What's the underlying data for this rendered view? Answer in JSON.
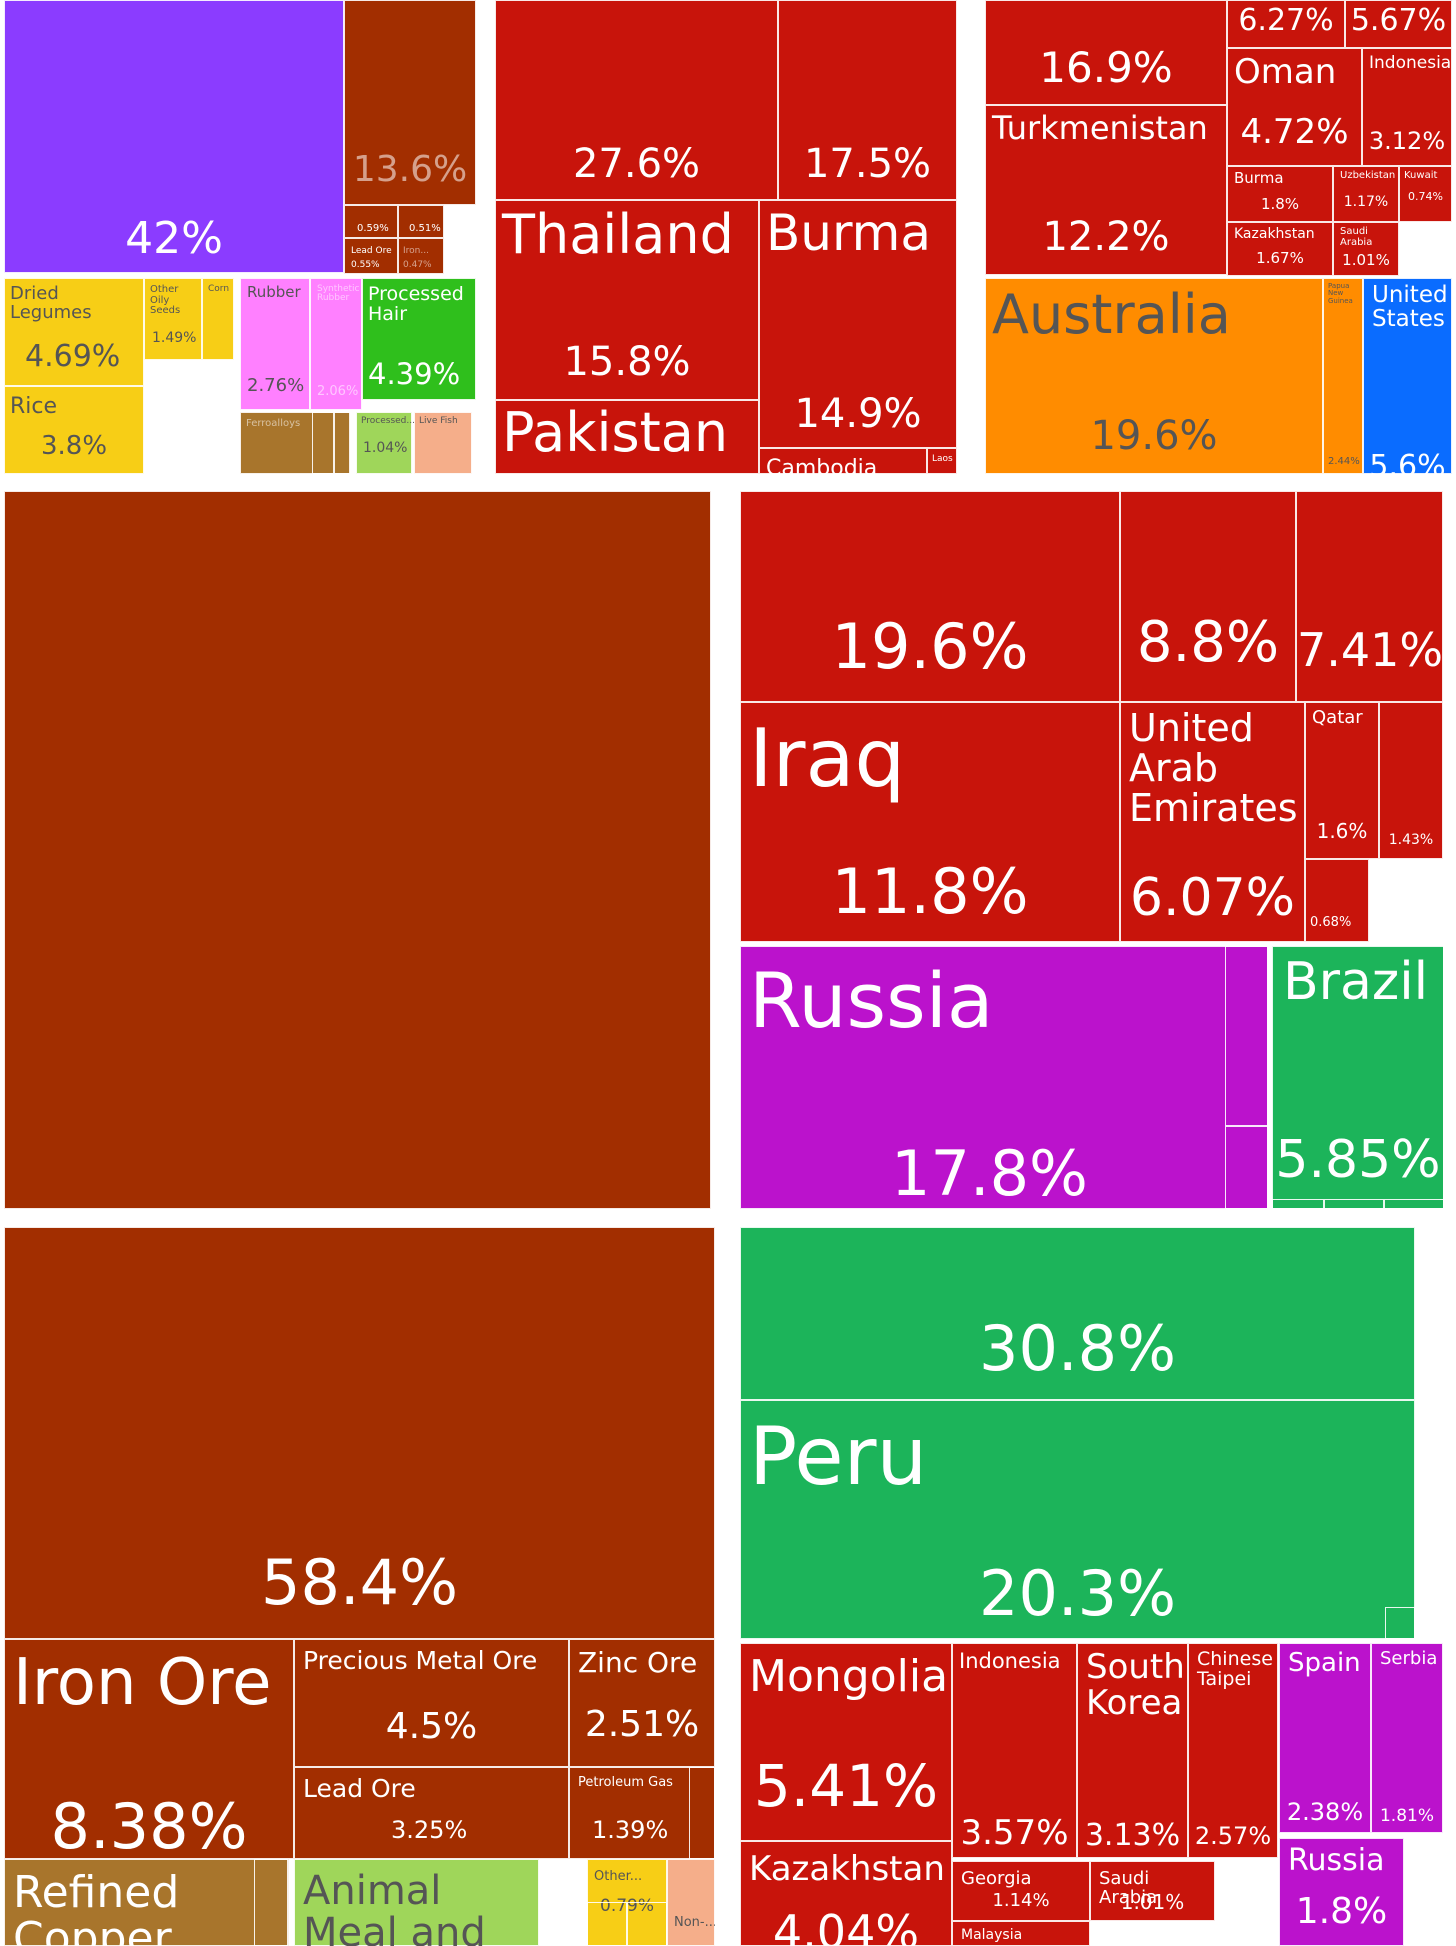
{
  "colors": {
    "purple": "#8b3cff",
    "rust": "#a22e00",
    "red": "#c8140b",
    "yellow": "#f7ce16",
    "pink": "#ff80ff",
    "green": "#2fbf1c",
    "brown": "#a8752c",
    "lime": "#9fd65a",
    "salmon": "#f5ae8a",
    "orange": "#ff8c00",
    "blue": "#0a6cff",
    "magenta": "#bb12cc",
    "teal": "#1cb45a"
  },
  "chart_data": [
    {
      "type": "treemap",
      "panel": "top-left",
      "tiles": [
        {
          "label": "",
          "value": "42%",
          "color": "purple"
        },
        {
          "label": "",
          "value": "13.6%",
          "color": "rust"
        },
        {
          "label": "",
          "value": "0.59%",
          "color": "rust"
        },
        {
          "label": "",
          "value": "0.51%",
          "color": "rust"
        },
        {
          "label": "Lead Ore",
          "value": "0.55%",
          "color": "rust"
        },
        {
          "label": "Iron...",
          "value": "0.47%",
          "color": "rust"
        },
        {
          "label": "Dried Legumes",
          "value": "4.69%",
          "color": "yellow"
        },
        {
          "label": "Rice",
          "value": "3.8%",
          "color": "yellow"
        },
        {
          "label": "Other Oily Seeds",
          "value": "1.49%",
          "color": "yellow"
        },
        {
          "label": "Corn",
          "value": "",
          "color": "yellow"
        },
        {
          "label": "Rubber",
          "value": "2.76%",
          "color": "pink"
        },
        {
          "label": "Synthetic Rubber",
          "value": "2.06%",
          "color": "pink"
        },
        {
          "label": "Processed Hair",
          "value": "4.39%",
          "color": "green"
        },
        {
          "label": "Ferroalloys",
          "value": "",
          "color": "brown"
        },
        {
          "label": "Processed...",
          "value": "1.04%",
          "color": "lime"
        },
        {
          "label": "Live Fish",
          "value": "",
          "color": "salmon"
        }
      ]
    },
    {
      "type": "treemap",
      "panel": "top-middle",
      "tiles": [
        {
          "label": "",
          "value": "27.6%",
          "color": "red"
        },
        {
          "label": "",
          "value": "17.5%",
          "color": "red"
        },
        {
          "label": "Thailand",
          "value": "15.8%",
          "color": "red"
        },
        {
          "label": "Burma",
          "value": "14.9%",
          "color": "red"
        },
        {
          "label": "Pakistan",
          "value": "",
          "color": "red"
        },
        {
          "label": "Cambodia",
          "value": "",
          "color": "red"
        },
        {
          "label": "Laos",
          "value": "",
          "color": "red"
        }
      ]
    },
    {
      "type": "treemap",
      "panel": "top-right",
      "tiles": [
        {
          "label": "",
          "value": "16.9%",
          "color": "red"
        },
        {
          "label": "",
          "value": "6.27%",
          "color": "red"
        },
        {
          "label": "",
          "value": "5.67%",
          "color": "red"
        },
        {
          "label": "Turkmenistan",
          "value": "12.2%",
          "color": "red"
        },
        {
          "label": "Oman",
          "value": "4.72%",
          "color": "red"
        },
        {
          "label": "Indonesia",
          "value": "3.12%",
          "color": "red"
        },
        {
          "label": "Burma",
          "value": "1.8%",
          "color": "red"
        },
        {
          "label": "Uzbekistan",
          "value": "1.17%",
          "color": "red"
        },
        {
          "label": "Kuwait",
          "value": "0.74%",
          "color": "red"
        },
        {
          "label": "Kazakhstan",
          "value": "1.67%",
          "color": "red"
        },
        {
          "label": "Saudi Arabia",
          "value": "1.01%",
          "color": "red"
        },
        {
          "label": "Australia",
          "value": "19.6%",
          "color": "orange"
        },
        {
          "label": "Papua New Guinea",
          "value": "2.44%",
          "color": "orange"
        },
        {
          "label": "United States",
          "value": "5.6%",
          "color": "blue"
        }
      ]
    },
    {
      "type": "treemap",
      "panel": "middle-left",
      "tiles": [
        {
          "label": "",
          "value": "",
          "color": "rust"
        }
      ]
    },
    {
      "type": "treemap",
      "panel": "middle-right",
      "tiles": [
        {
          "label": "",
          "value": "19.6%",
          "color": "red"
        },
        {
          "label": "",
          "value": "8.8%",
          "color": "red"
        },
        {
          "label": "",
          "value": "7.41%",
          "color": "red"
        },
        {
          "label": "Iraq",
          "value": "11.8%",
          "color": "red"
        },
        {
          "label": "United Arab Emirates",
          "value": "6.07%",
          "color": "red"
        },
        {
          "label": "Qatar",
          "value": "1.6%",
          "color": "red"
        },
        {
          "label": "",
          "value": "1.43%",
          "color": "red"
        },
        {
          "label": "",
          "value": "0.68%",
          "color": "red"
        },
        {
          "label": "Russia",
          "value": "17.8%",
          "color": "magenta"
        },
        {
          "label": "Brazil",
          "value": "5.85%",
          "color": "teal"
        }
      ]
    },
    {
      "type": "treemap",
      "panel": "bottom-left",
      "tiles": [
        {
          "label": "",
          "value": "58.4%",
          "color": "rust"
        },
        {
          "label": "Iron Ore",
          "value": "8.38%",
          "color": "rust"
        },
        {
          "label": "Precious Metal Ore",
          "value": "4.5%",
          "color": "rust"
        },
        {
          "label": "Zinc Ore",
          "value": "2.51%",
          "color": "rust"
        },
        {
          "label": "Lead Ore",
          "value": "3.25%",
          "color": "rust"
        },
        {
          "label": "Petroleum Gas",
          "value": "1.39%",
          "color": "rust"
        },
        {
          "label": "Refined Copper",
          "value": "",
          "color": "brown"
        },
        {
          "label": "Animal Meal and Pellets",
          "value": "",
          "color": "lime"
        },
        {
          "label": "Other...",
          "value": "0.79%",
          "color": "yellow"
        },
        {
          "label": "Non-...",
          "value": "",
          "color": "salmon"
        }
      ]
    },
    {
      "type": "treemap",
      "panel": "bottom-right",
      "tiles": [
        {
          "label": "",
          "value": "30.8%",
          "color": "teal"
        },
        {
          "label": "Peru",
          "value": "20.3%",
          "color": "teal"
        },
        {
          "label": "Mongolia",
          "value": "5.41%",
          "color": "red"
        },
        {
          "label": "Indonesia",
          "value": "3.57%",
          "color": "red"
        },
        {
          "label": "South Korea",
          "value": "3.13%",
          "color": "red"
        },
        {
          "label": "Chinese Taipei",
          "value": "2.57%",
          "color": "red"
        },
        {
          "label": "Kazakhstan",
          "value": "4.04%",
          "color": "red"
        },
        {
          "label": "Georgia",
          "value": "1.14%",
          "color": "red"
        },
        {
          "label": "Saudi Arabia",
          "value": "1.01%",
          "color": "red"
        },
        {
          "label": "Malaysia",
          "value": "",
          "color": "red"
        },
        {
          "label": "Spain",
          "value": "2.38%",
          "color": "magenta"
        },
        {
          "label": "Serbia",
          "value": "1.81%",
          "color": "magenta"
        },
        {
          "label": "Russia",
          "value": "1.8%",
          "color": "magenta"
        }
      ]
    }
  ]
}
